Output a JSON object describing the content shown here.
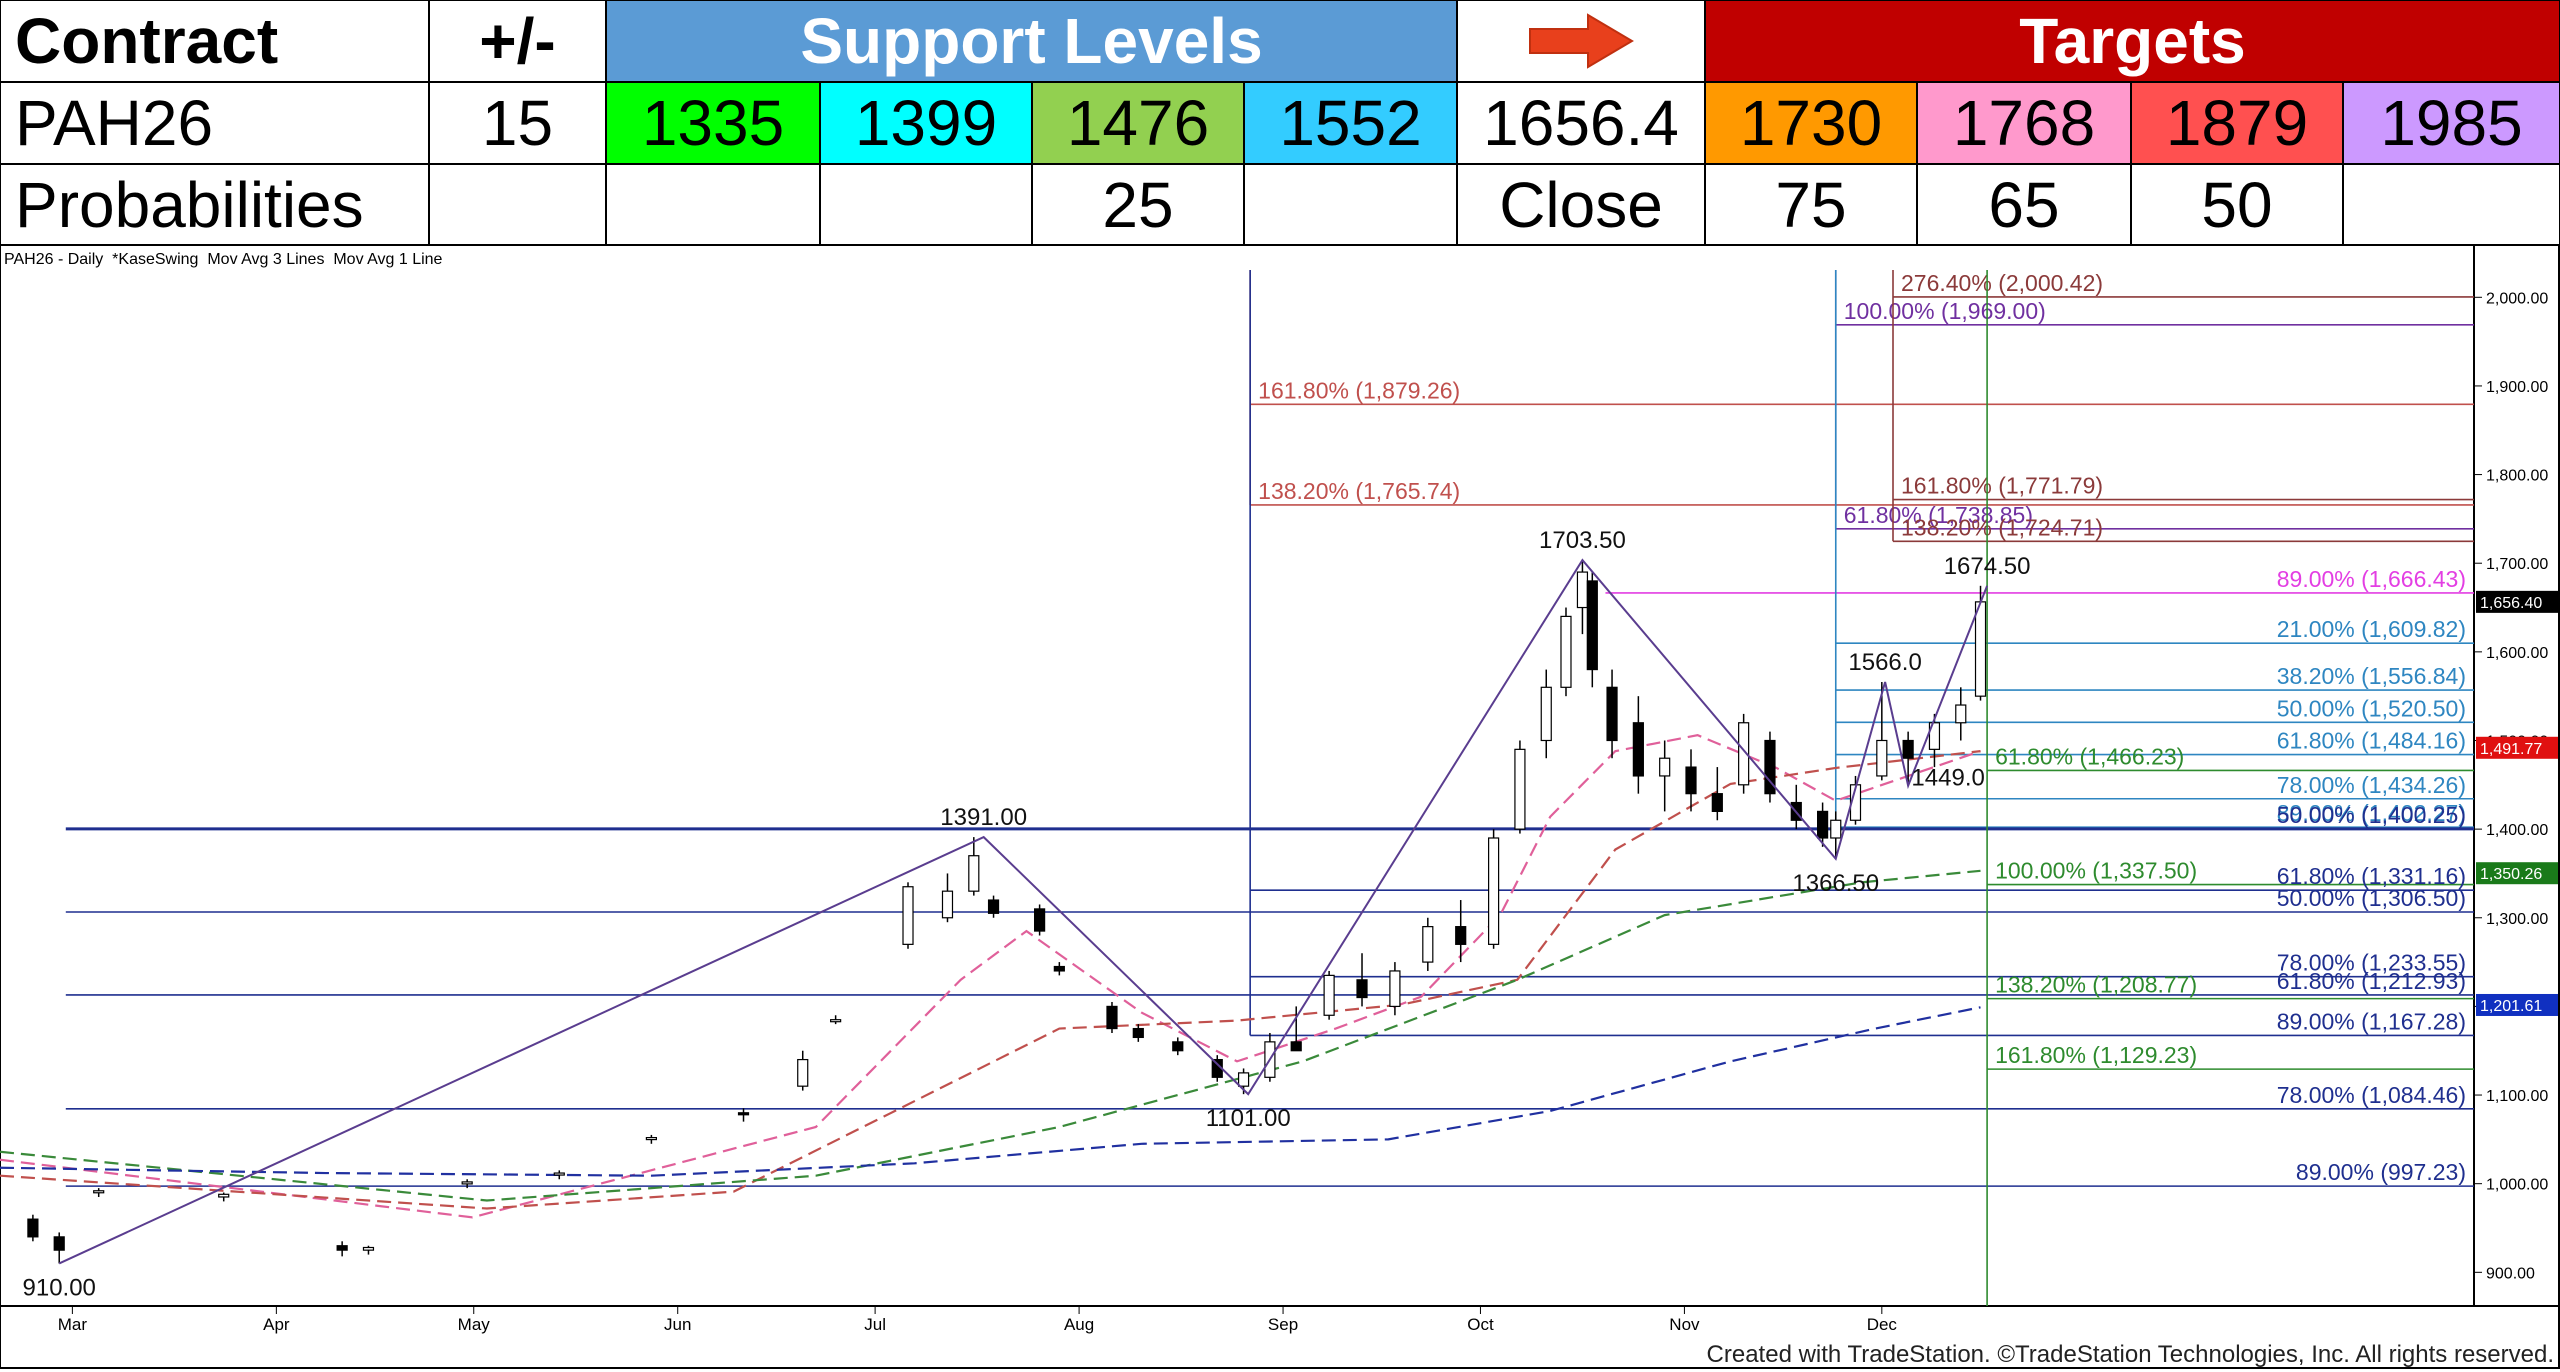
{
  "table": {
    "header": [
      "Contract",
      "+/-",
      "Support Levels",
      null,
      "Targets"
    ],
    "rows": [
      [
        "PAH26",
        15,
        1335,
        1399,
        1476,
        1552,
        1656.4,
        1730,
        1768,
        1879,
        1985
      ],
      [
        "Probabilities",
        null,
        null,
        null,
        25,
        null,
        "Close",
        75,
        65,
        50,
        null
      ]
    ]
  },
  "chart_data": {
    "type": "candlestick",
    "title": "PAH26 - Daily  *KaseSwing  Mov Avg 3 Lines  Mov Avg 1 Line",
    "footer": "Created with TradeStation. ©TradeStation Technologies, Inc. All rights reserved.",
    "xlim": [
      -11,
      365
    ],
    "ylim": [
      862,
      2059
    ],
    "xticks": [
      {
        "value": 0,
        "label": "Mar"
      },
      {
        "value": 31,
        "label": "Apr"
      },
      {
        "value": 61,
        "label": "May"
      },
      {
        "value": 92,
        "label": "Jun"
      },
      {
        "value": 122,
        "label": "Jul"
      },
      {
        "value": 153,
        "label": "Aug"
      },
      {
        "value": 184,
        "label": "Sep"
      },
      {
        "value": 214,
        "label": "Oct"
      },
      {
        "value": 245,
        "label": "Nov"
      },
      {
        "value": 275,
        "label": "Dec"
      }
    ],
    "yticks": [
      {
        "value": 900,
        "label": "900.00"
      },
      {
        "value": 1000,
        "label": "1,000.00"
      },
      {
        "value": 1100,
        "label": "1,100.00"
      },
      {
        "value": 1200,
        "label": "1,200.00"
      },
      {
        "value": 1300,
        "label": "1,300.00"
      },
      {
        "value": 1400,
        "label": "1,400.00"
      },
      {
        "value": 1500,
        "label": "1,500.00"
      },
      {
        "value": 1600,
        "label": "1,600.00"
      },
      {
        "value": 1700,
        "label": "1,700.00"
      },
      {
        "value": 1800,
        "label": "1,800.00"
      },
      {
        "value": 1900,
        "label": "1,900.00"
      },
      {
        "value": 2000,
        "label": "2,000.00"
      }
    ],
    "ohlc": {
      "x": [
        -6,
        -2,
        4,
        23,
        41,
        45,
        60,
        74,
        88,
        102,
        111,
        116,
        127,
        133,
        137,
        140,
        147,
        150,
        158,
        162,
        168,
        174,
        178,
        182,
        186,
        191,
        196,
        201,
        206,
        211,
        216,
        220,
        224,
        227,
        229.5,
        231,
        234,
        238,
        242,
        246,
        250,
        254,
        258,
        262,
        266,
        268,
        271,
        275,
        279,
        283,
        287,
        290
      ],
      "open": [
        960,
        940,
        990,
        985,
        930,
        925,
        1000,
        1010,
        1050,
        1080,
        1110,
        1185,
        1270,
        1300,
        1330,
        1320,
        1310,
        1245,
        1200,
        1175,
        1160,
        1140,
        1110,
        1120,
        1160,
        1190,
        1230,
        1200,
        1250,
        1290,
        1270,
        1400,
        1500,
        1560,
        1650,
        1680,
        1560,
        1520,
        1460,
        1470,
        1440,
        1450,
        1500,
        1430,
        1420,
        1390,
        1410,
        1460,
        1500,
        1490,
        1520,
        1550
      ],
      "high": [
        965,
        945,
        995,
        990,
        935,
        930,
        1005,
        1015,
        1055,
        1085,
        1150,
        1190,
        1340,
        1350,
        1391,
        1325,
        1315,
        1250,
        1205,
        1180,
        1165,
        1145,
        1130,
        1170,
        1200,
        1240,
        1260,
        1250,
        1300,
        1320,
        1400,
        1500,
        1580,
        1650,
        1703.5,
        1690,
        1580,
        1550,
        1500,
        1490,
        1470,
        1530,
        1510,
        1450,
        1430,
        1420,
        1460,
        1566,
        1510,
        1530,
        1560,
        1674.5
      ],
      "low": [
        935,
        910,
        985,
        980,
        918,
        920,
        995,
        1005,
        1045,
        1070,
        1105,
        1180,
        1265,
        1295,
        1325,
        1300,
        1280,
        1235,
        1170,
        1160,
        1145,
        1115,
        1101,
        1115,
        1150,
        1185,
        1200,
        1190,
        1240,
        1250,
        1265,
        1395,
        1480,
        1550,
        1620,
        1560,
        1480,
        1440,
        1420,
        1420,
        1410,
        1440,
        1430,
        1400,
        1380,
        1366.5,
        1405,
        1455,
        1449,
        1470,
        1500,
        1545
      ],
      "close": [
        940,
        925,
        992,
        988,
        925,
        928,
        1002,
        1012,
        1052,
        1078,
        1140,
        1185,
        1335,
        1330,
        1370,
        1305,
        1285,
        1240,
        1175,
        1165,
        1150,
        1120,
        1125,
        1160,
        1150,
        1235,
        1210,
        1240,
        1290,
        1270,
        1390,
        1490,
        1560,
        1640,
        1690,
        1580,
        1500,
        1460,
        1480,
        1440,
        1420,
        1520,
        1440,
        1410,
        1390,
        1410,
        1450,
        1500,
        1480,
        1520,
        1540,
        1656.4
      ]
    },
    "series": [
      {
        "color": "#e0609a",
        "x": [
          -11,
          60.8,
          113,
          135,
          145,
          162.5,
          177,
          192,
          205,
          217,
          224.6,
          234.5,
          247,
          259,
          268,
          279,
          290
        ],
        "values": [
          1027,
          962,
          1064,
          1230,
          1285,
          1193,
          1138,
          1175,
          1211,
          1303,
          1414,
          1488,
          1506,
          1469,
          1432,
          1460,
          1488
        ]
      },
      {
        "color": "#c0504d",
        "x": [
          -11,
          63,
          100.5,
          125,
          150,
          177,
          202,
          219.6,
          234.5,
          252,
          268,
          290
        ],
        "values": [
          1009,
          972,
          991,
          1082,
          1175,
          1184,
          1202,
          1230,
          1377,
          1451,
          1469,
          1488
        ]
      },
      {
        "color": "#3a8a3a",
        "x": [
          -11,
          63,
          113,
          150,
          187,
          219.6,
          242,
          272,
          290
        ],
        "values": [
          1036,
          981,
          1009,
          1064,
          1138,
          1230,
          1303,
          1340,
          1353
        ]
      },
      {
        "color": "#2030a0",
        "x": [
          -11,
          38.5,
          88,
          128,
          162.5,
          200,
          224.6,
          252,
          274,
          290
        ],
        "values": [
          1018,
          1012,
          1009,
          1023,
          1045,
          1050,
          1082,
          1138,
          1175,
          1199
        ]
      }
    ],
    "swings": {
      "color": "#5a3d8f",
      "x": [
        -2,
        138.5,
        178.7,
        229.5,
        268,
        275.5,
        279,
        291
      ],
      "values": [
        910,
        1391,
        1101,
        1703.5,
        1366.5,
        1566,
        1449,
        1674.5
      ],
      "value_labels": [
        "910.00",
        "1391.00",
        "1101.00",
        "1703.50",
        "1366.50",
        "1566.0",
        "1449.0",
        "1674.50"
      ]
    },
    "levels": [
      {
        "label": "276.40% (2,000.42)",
        "value": 2000.42,
        "x": 276.7,
        "color": "#8b3a3a"
      },
      {
        "label": "100.00% (1,969.00)",
        "value": 1969,
        "x": 268,
        "color": "#7030a0"
      },
      {
        "label": "161.80% (1,879.26)",
        "value": 1879.26,
        "x": 179,
        "color": "#c0504d"
      },
      {
        "label": "161.80% (1,771.79)",
        "value": 1771.79,
        "x": 276.7,
        "color": "#8b3a3a"
      },
      {
        "label": "138.20% (1,765.74)",
        "value": 1765.74,
        "x": 179,
        "color": "#c0504d"
      },
      {
        "label": "61.80% (1,738.85)",
        "value": 1738.85,
        "x": 268,
        "color": "#7030a0"
      },
      {
        "label": "138.20% (1,724.71)",
        "value": 1724.71,
        "x": 276.7,
        "color": "#8b3a3a"
      },
      {
        "label": "89.00% (1,666.43)",
        "value": 1666.43,
        "x": 233,
        "color": "#e33ee3"
      },
      {
        "label": "21.00% (1,609.82)",
        "value": 1609.82,
        "x": 268,
        "color": "#2e86c1"
      },
      {
        "label": "38.20% (1,556.84)",
        "value": 1556.84,
        "x": 268,
        "color": "#2e86c1"
      },
      {
        "label": "50.00% (1,520.50)",
        "value": 1520.5,
        "x": 268,
        "color": "#2e86c1"
      },
      {
        "label": "61.80% (1,484.16)",
        "value": 1484.16,
        "x": 268,
        "color": "#2e86c1"
      },
      {
        "label": "61.80% (1,466.23)",
        "value": 1466.23,
        "x": 291,
        "color": "#2e8b2e"
      },
      {
        "label": "78.00% (1,434.26)",
        "value": 1434.26,
        "x": 268,
        "color": "#2e86c1"
      },
      {
        "label": "89.00% (1,402.27)",
        "value": 1402.27,
        "x": 268,
        "color": "#2e86c1"
      },
      {
        "label": "50.00% (1,400.25)",
        "value": 1400.25,
        "x": -1,
        "color": "#1f2f8f"
      },
      {
        "label": "100.00% (1,337.50)",
        "value": 1337.5,
        "x": 291,
        "color": "#2e8b2e"
      },
      {
        "label": "61.80% (1,331.16)",
        "value": 1331.16,
        "x": 179,
        "color": "#1f2f8f"
      },
      {
        "label": "50.00% (1,306.50)",
        "value": 1306.5,
        "x": -1,
        "color": "#1f2f8f"
      },
      {
        "label": "78.00% (1,233.55)",
        "value": 1233.55,
        "x": 179,
        "color": "#1f2f8f"
      },
      {
        "label": "61.80% (1,212.93)",
        "value": 1212.93,
        "x": -1,
        "color": "#1f2f8f"
      },
      {
        "label": "138.20% (1,208.77)",
        "value": 1208.77,
        "x": 291,
        "color": "#2e8b2e"
      },
      {
        "label": "89.00% (1,167.28)",
        "value": 1167.28,
        "x": 179,
        "color": "#1f2f8f"
      },
      {
        "label": "161.80% (1,129.23)",
        "value": 1129.23,
        "x": 291,
        "color": "#2e8b2e"
      },
      {
        "label": "78.00% (1,084.46)",
        "value": 1084.46,
        "x": -1,
        "color": "#1f2f8f"
      },
      {
        "label": "89.00% (997.23)",
        "value": 997.23,
        "x": -1,
        "color": "#1f2f8f"
      }
    ],
    "price_tags": [
      {
        "value": 1656.4,
        "label": "1,656.40",
        "color": "#000000"
      },
      {
        "value": 1491.77,
        "label": "1,491.77",
        "color": "#e01010"
      },
      {
        "value": 1350.26,
        "label": "1,350.26",
        "color": "#1a7a1a"
      },
      {
        "value": 1201.61,
        "label": "1,201.61",
        "color": "#1030c0"
      }
    ]
  }
}
